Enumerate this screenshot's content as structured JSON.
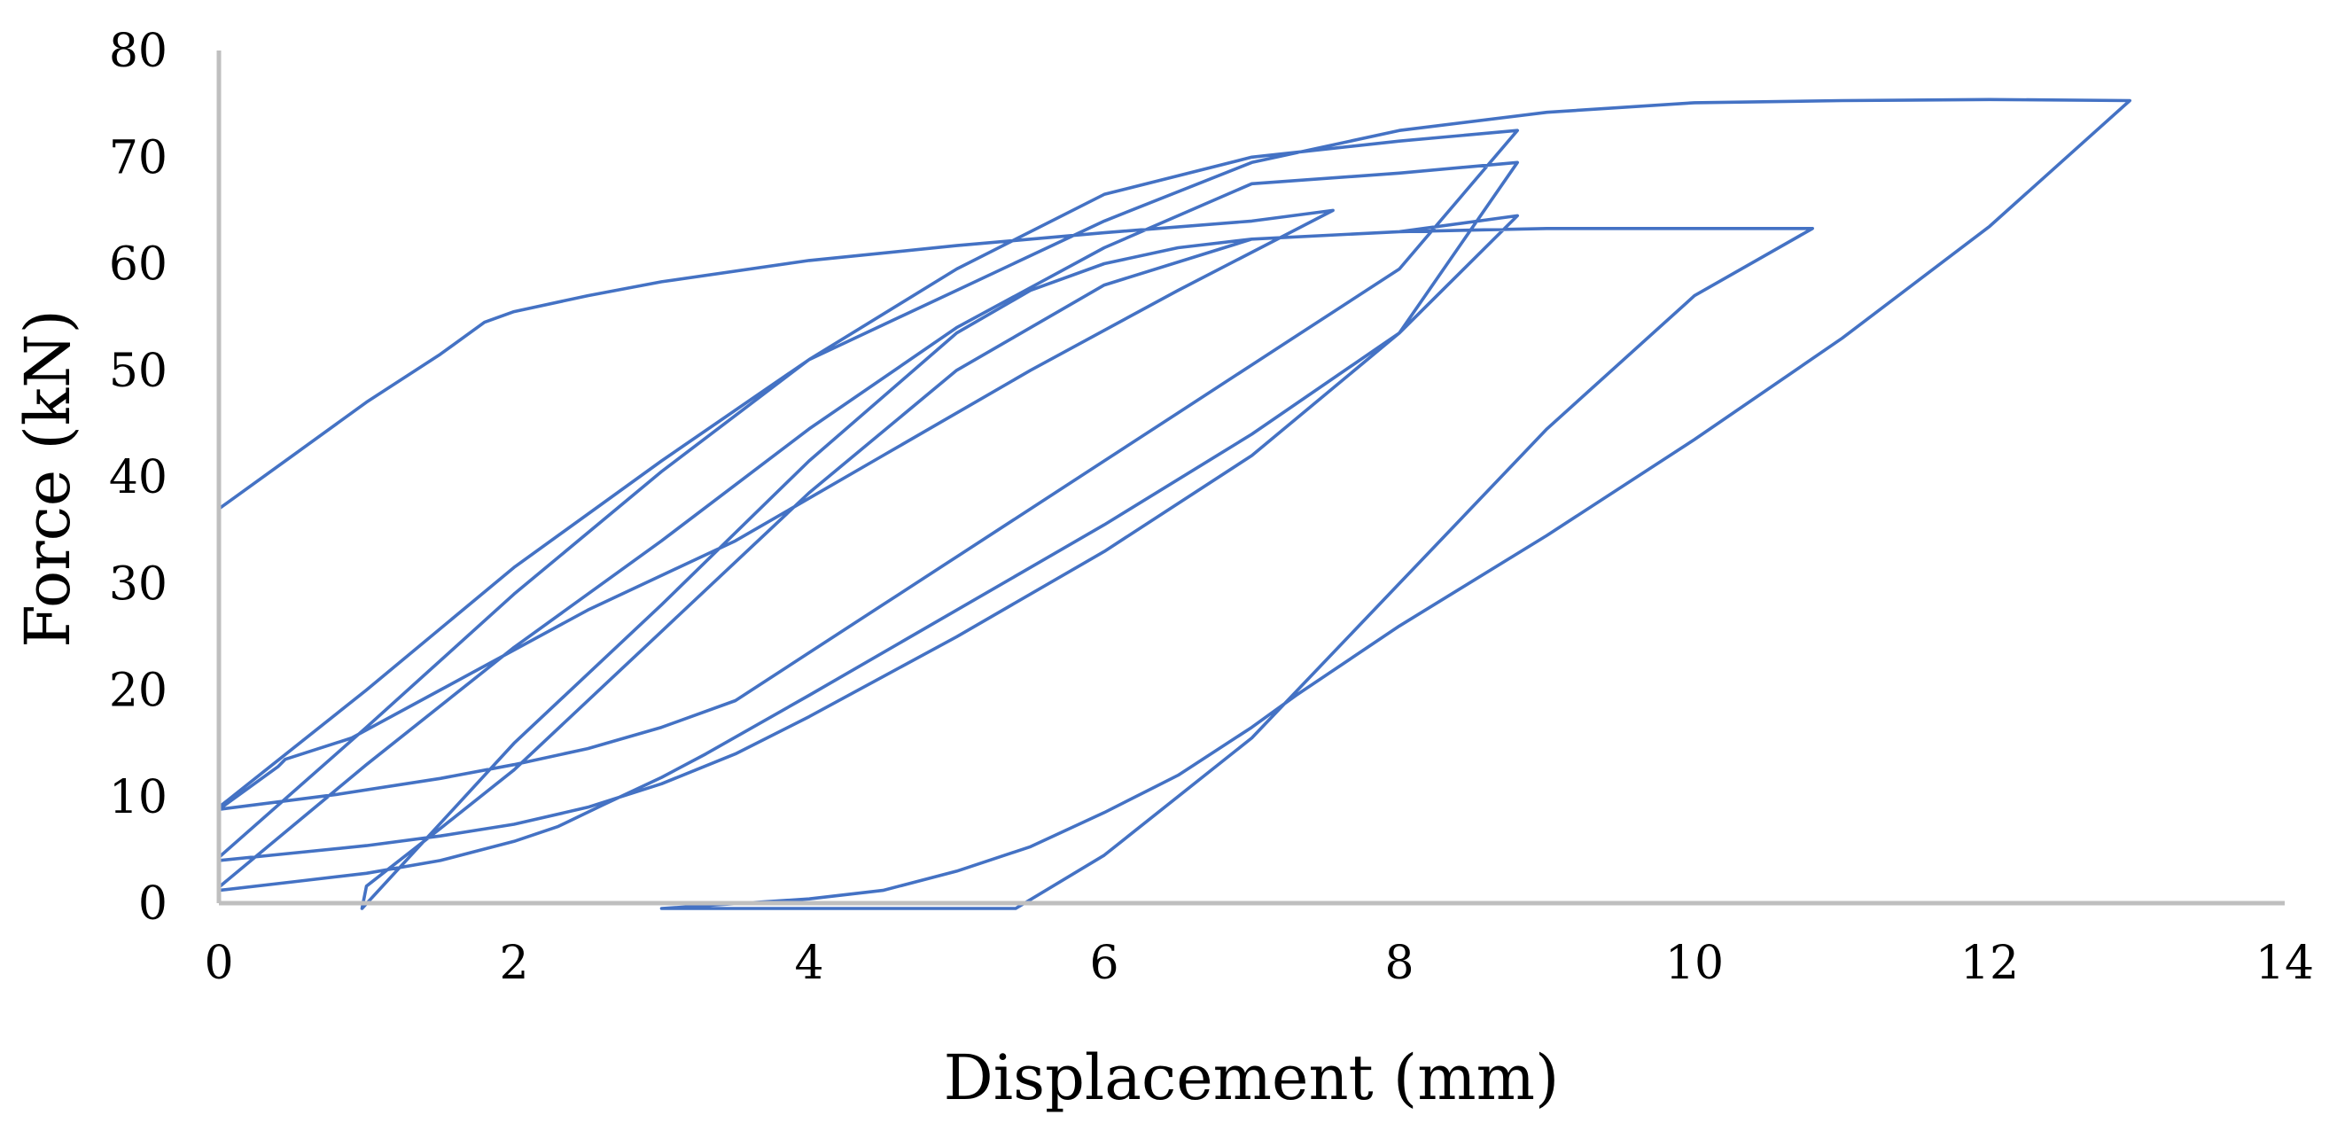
{
  "chart_data": {
    "type": "line",
    "title": "",
    "xlabel": "Displacement (mm)",
    "ylabel": "Force (kN)",
    "xlim": [
      0,
      14
    ],
    "ylim": [
      0,
      80
    ],
    "x_ticks": [
      "0",
      "2",
      "4",
      "6",
      "8",
      "10",
      "12",
      "14"
    ],
    "y_ticks": [
      "0",
      "10",
      "20",
      "30",
      "40",
      "50",
      "60",
      "70",
      "80"
    ],
    "grid": false,
    "legend": "none",
    "line_color": "#4472C4",
    "series": [
      {
        "x": [
          0,
          0.5,
          1.0,
          1.5,
          1.8,
          2.0,
          2.5,
          3.0,
          4.0,
          5.0,
          6.0,
          7.0,
          7.55,
          6.5,
          5.5,
          4.5,
          3.5,
          2.5,
          1.5,
          0.9,
          0.45,
          0.4,
          0.0,
          0.0,
          0.8,
          1.5,
          2.0,
          2.5,
          3.0,
          3.5,
          4.0,
          4.5,
          5.0,
          5.5,
          6.0,
          6.5,
          7.0,
          8.0,
          8.8,
          8.0,
          7.0,
          6.0,
          5.0,
          4.0,
          3.0,
          2.0,
          1.0,
          0.0,
          0.0,
          0.5,
          1.0,
          1.5,
          2.0,
          2.5,
          3.0,
          3.5,
          4.0,
          5.0,
          6.0,
          7.0,
          8.0,
          8.8,
          8.0,
          7.0,
          6.0,
          5.0,
          4.0,
          3.0,
          2.0,
          1.0,
          0.0,
          0.0,
          0.5,
          1.0,
          1.5,
          2.0,
          2.3,
          2.6,
          3.0,
          3.3,
          4.0,
          5.0,
          6.0,
          7.0,
          8.0,
          8.8,
          8.0,
          7.0,
          6.0,
          5.0,
          4.0,
          3.0,
          2.0,
          1.5,
          1.0,
          0.97,
          2.0,
          3.0,
          4.0,
          5.0,
          5.5,
          6.0,
          6.5,
          7.0,
          8.0,
          9.0,
          10.0,
          10.8,
          10.0,
          9.0,
          8.0,
          7.0,
          6.0,
          5.4,
          3.0,
          4.0,
          4.5,
          5.0,
          5.5,
          6.0,
          6.5,
          7.0,
          7.3,
          8.0,
          9.0,
          10.0,
          11.0,
          12.0,
          12.95,
          12.0,
          11.0,
          10.0,
          9.0,
          8.0,
          7.0,
          6.0,
          5.0,
          4.0,
          3.0,
          2.0,
          1.0,
          0.0
        ],
        "y": [
          37,
          42,
          47,
          51.5,
          54.5,
          55.5,
          57,
          58.3,
          60.3,
          61.7,
          62.9,
          64.0,
          65.0,
          57.5,
          50.0,
          42.0,
          34.0,
          27.5,
          20.0,
          15.5,
          13.5,
          12.8,
          8.8,
          8.8,
          10.2,
          11.7,
          13.0,
          14.5,
          16.5,
          19.0,
          23.5,
          28.0,
          32.5,
          37.0,
          41.5,
          46.0,
          50.5,
          59.5,
          72.5,
          71.5,
          70.0,
          66.5,
          59.5,
          51.0,
          40.5,
          29.0,
          16.5,
          4.3,
          4.0,
          4.7,
          5.4,
          6.3,
          7.4,
          9.0,
          11.2,
          14.0,
          17.5,
          25.0,
          33.0,
          42.0,
          53.5,
          69.5,
          68.5,
          67.5,
          61.5,
          54.0,
          44.5,
          34.0,
          24.0,
          13.0,
          1.5,
          1.2,
          2.0,
          2.8,
          4.0,
          5.8,
          7.2,
          9.2,
          11.8,
          14.0,
          19.5,
          27.5,
          35.5,
          44.0,
          53.5,
          64.5,
          63.0,
          62.3,
          58.0,
          50.0,
          38.5,
          25.5,
          12.5,
          7.0,
          1.6,
          -0.5,
          15.0,
          28.0,
          41.5,
          53.5,
          57.5,
          60.0,
          61.5,
          62.3,
          63.0,
          63.3,
          63.3,
          63.3,
          57.0,
          44.5,
          30.0,
          15.5,
          4.5,
          -0.5,
          -0.5,
          0.4,
          1.2,
          3.0,
          5.3,
          8.5,
          12.0,
          16.5,
          19.5,
          26.0,
          34.5,
          43.5,
          53.0,
          63.5,
          75.3,
          75.4,
          75.3,
          75.1,
          74.2,
          72.5,
          69.5,
          64.0,
          57.5,
          51.0,
          41.5,
          31.5,
          20.0,
          9.0
        ]
      }
    ]
  }
}
